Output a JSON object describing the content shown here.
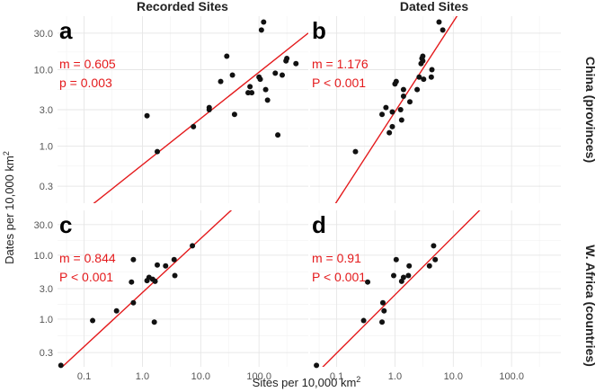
{
  "chart_data": {
    "type": "scatter",
    "column_titles": [
      "Recorded Sites",
      "Dated Sites"
    ],
    "row_titles": [
      "China (provinces)",
      "W. Africa (countries)"
    ],
    "xlabel": "Sites per 10,000 km",
    "xlabel_sup": "2",
    "ylabel": "Dates per 10,000 km",
    "ylabel_sup": "2",
    "x_scale": "log10",
    "y_scale": "log10",
    "xlim": [
      0.035,
      700
    ],
    "ylim": [
      0.18,
      50
    ],
    "x_ticks": [
      0.1,
      1,
      10,
      100
    ],
    "x_tick_labels": [
      "0.1",
      "1.0",
      "10.0",
      "100.0"
    ],
    "y_ticks": [
      0.3,
      1,
      3,
      10,
      30
    ],
    "y_tick_labels": [
      "0.3",
      "1.0",
      "3.0",
      "10.0",
      "30.0"
    ],
    "panels": [
      {
        "label": "a",
        "row": 0,
        "col": 0,
        "stat1": "m = 0.605",
        "stat2": "p = 0.003",
        "fit": {
          "slope": 0.605,
          "intercept": -0.243
        },
        "points": [
          [
            1.2,
            2.5
          ],
          [
            1.8,
            0.85
          ],
          [
            7.5,
            1.8
          ],
          [
            14,
            3.2
          ],
          [
            14,
            3.0
          ],
          [
            22,
            7
          ],
          [
            28,
            15
          ],
          [
            35,
            8.5
          ],
          [
            38,
            2.6
          ],
          [
            65,
            5
          ],
          [
            70,
            6
          ],
          [
            75,
            5
          ],
          [
            100,
            8
          ],
          [
            105,
            7.5
          ],
          [
            110,
            33
          ],
          [
            120,
            42
          ],
          [
            130,
            5.5
          ],
          [
            140,
            4
          ],
          [
            190,
            9
          ],
          [
            210,
            1.4
          ],
          [
            250,
            8.5
          ],
          [
            290,
            13
          ],
          [
            300,
            14
          ],
          [
            430,
            12
          ]
        ]
      },
      {
        "label": "b",
        "row": 0,
        "col": 1,
        "stat1": "m = 1.176",
        "stat2": "P < 0.001",
        "fit": {
          "slope": 1.176,
          "intercept": 0.45
        },
        "points": [
          [
            0.21,
            0.85
          ],
          [
            0.6,
            2.6
          ],
          [
            0.7,
            3.2
          ],
          [
            0.8,
            1.5
          ],
          [
            0.9,
            1.8
          ],
          [
            0.9,
            2.8
          ],
          [
            1.0,
            6.5
          ],
          [
            1.05,
            7
          ],
          [
            1.25,
            3
          ],
          [
            1.3,
            2.2
          ],
          [
            1.4,
            4.5
          ],
          [
            1.4,
            5.5
          ],
          [
            1.8,
            3.8
          ],
          [
            2.4,
            5.5
          ],
          [
            2.6,
            8
          ],
          [
            2.8,
            12
          ],
          [
            2.9,
            14
          ],
          [
            3.0,
            15
          ],
          [
            3.0,
            13
          ],
          [
            3.1,
            7.5
          ],
          [
            4.2,
            8
          ],
          [
            4.3,
            10
          ],
          [
            5.7,
            42
          ],
          [
            6.6,
            33
          ]
        ]
      },
      {
        "label": "c",
        "row": 1,
        "col": 0,
        "stat1": "m = 0.844",
        "stat2": "P < 0.001",
        "fit": {
          "slope": 0.844,
          "intercept": 0.415
        },
        "points": [
          [
            0.04,
            0.19
          ],
          [
            0.14,
            0.95
          ],
          [
            0.36,
            1.35
          ],
          [
            0.65,
            3.8
          ],
          [
            0.7,
            8.5
          ],
          [
            0.7,
            1.8
          ],
          [
            1.2,
            4
          ],
          [
            1.3,
            4.5
          ],
          [
            1.5,
            4.2
          ],
          [
            1.6,
            0.9
          ],
          [
            1.65,
            3.9
          ],
          [
            1.8,
            7
          ],
          [
            2.5,
            6.8
          ],
          [
            3.5,
            8.5
          ],
          [
            3.6,
            4.8
          ],
          [
            7.2,
            14
          ]
        ]
      },
      {
        "label": "d",
        "row": 1,
        "col": 1,
        "stat1": "m = 0.91",
        "stat2": "P < 0.001",
        "fit": {
          "slope": 0.91,
          "intercept": 0.38
        },
        "points": [
          [
            0.045,
            0.19
          ],
          [
            0.29,
            0.95
          ],
          [
            0.34,
            3.8
          ],
          [
            0.6,
            0.9
          ],
          [
            0.62,
            1.8
          ],
          [
            0.65,
            1.35
          ],
          [
            0.95,
            4.8
          ],
          [
            1.05,
            8.5
          ],
          [
            1.3,
            3.9
          ],
          [
            1.4,
            4.5
          ],
          [
            1.7,
            4.8
          ],
          [
            1.75,
            6.8
          ],
          [
            3.9,
            6.8
          ],
          [
            4.6,
            14
          ],
          [
            4.9,
            8.5
          ]
        ]
      }
    ]
  }
}
